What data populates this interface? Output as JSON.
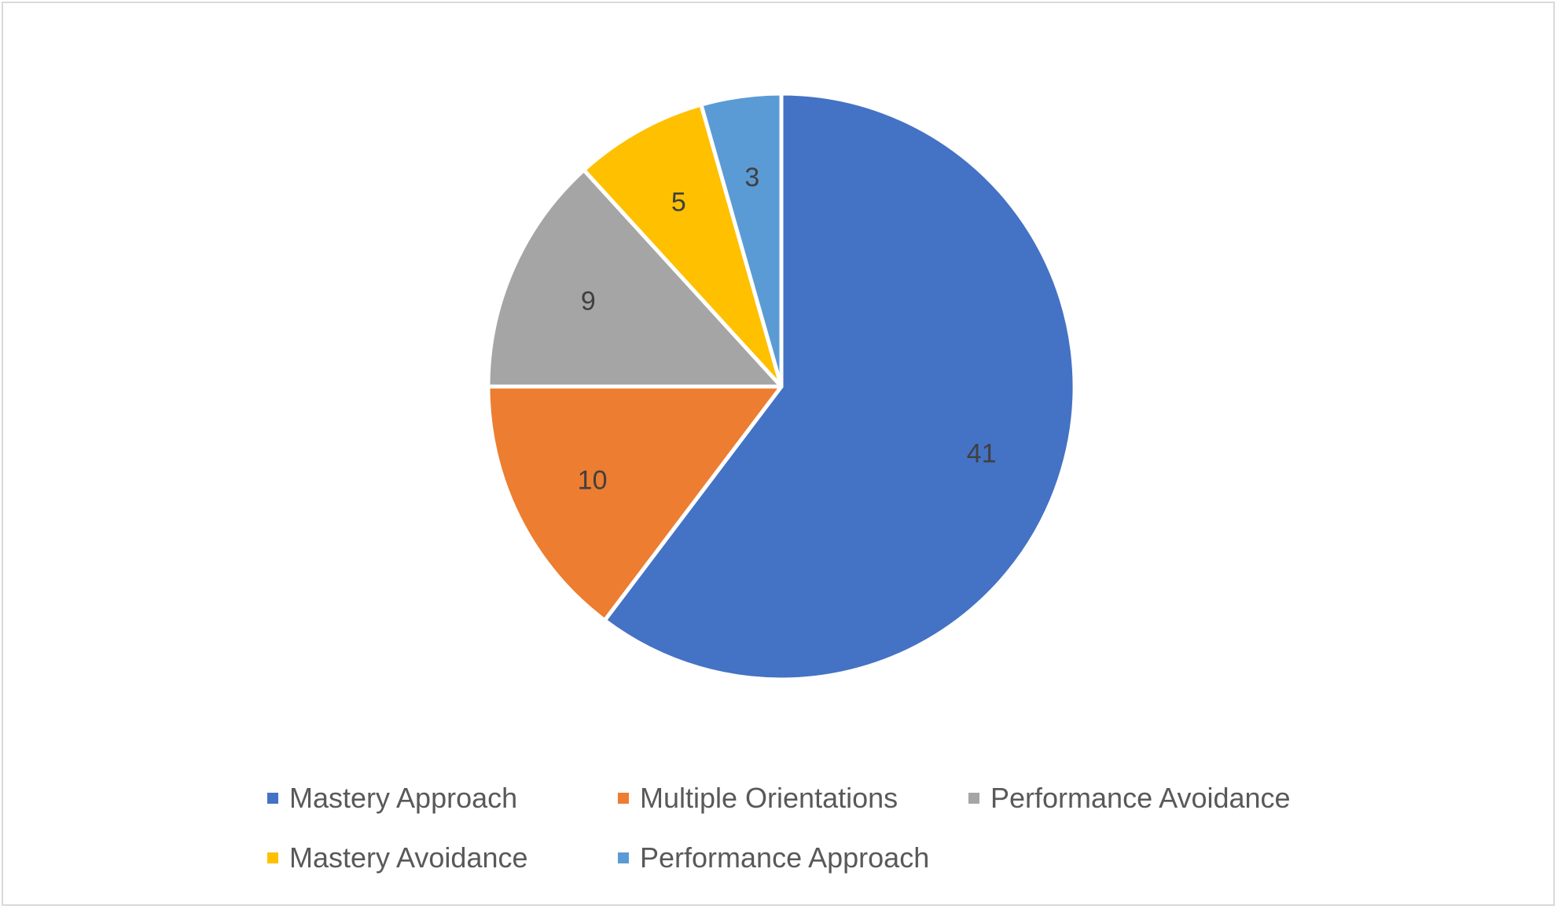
{
  "chart_data": {
    "type": "pie",
    "categories": [
      "Mastery Approach",
      "Multiple Orientations",
      "Performance Avoidance",
      "Mastery Avoidance",
      "Performance Approach"
    ],
    "values": [
      41,
      10,
      9,
      5,
      3
    ],
    "data_labels": [
      "41",
      "10",
      "9",
      "5",
      "3"
    ],
    "colors": [
      "#4472C4",
      "#ED7D31",
      "#A5A5A5",
      "#FFC000",
      "#5B9BD5"
    ],
    "start_angle_deg": 0,
    "direction": "clockwise",
    "legend_position": "bottom",
    "title": ""
  }
}
